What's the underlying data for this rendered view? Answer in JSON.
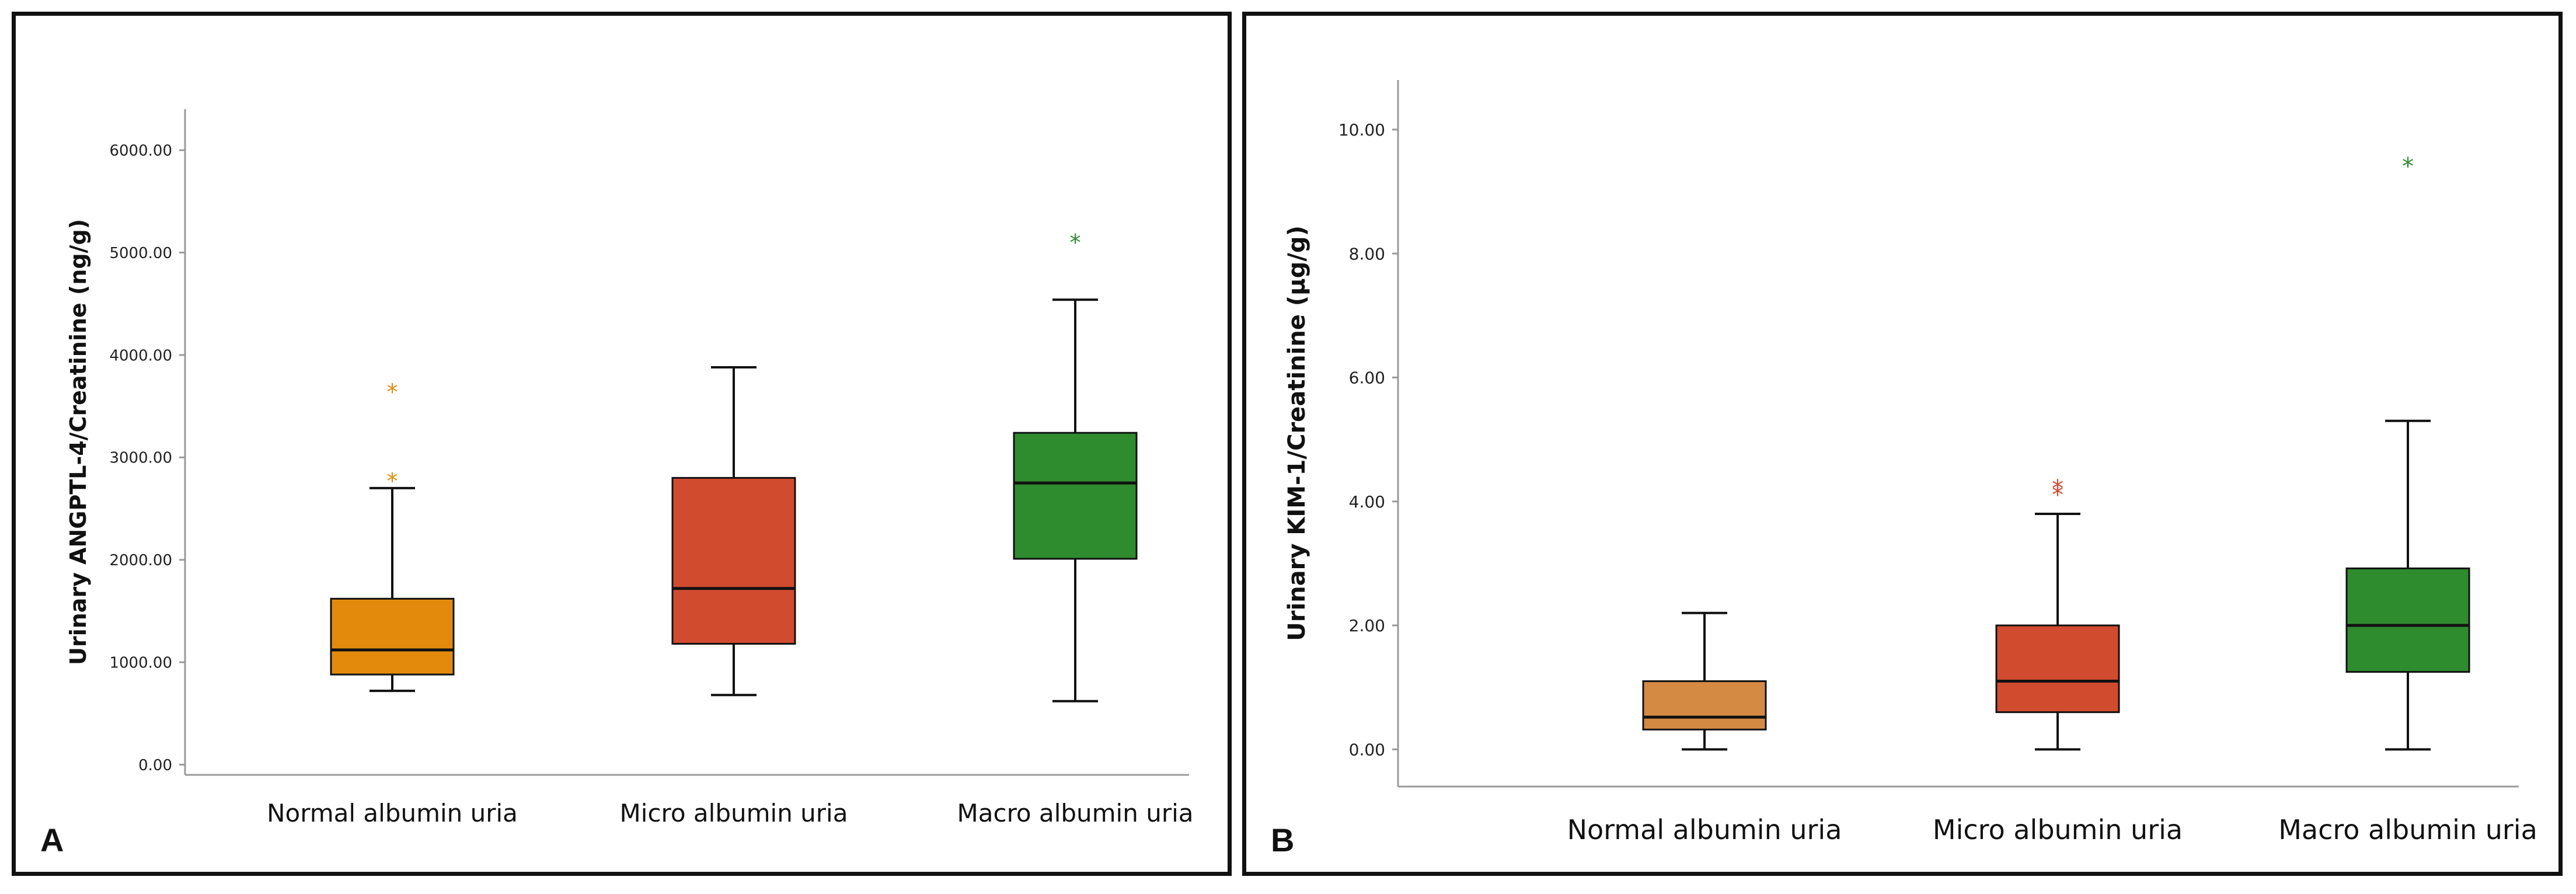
{
  "chart_data": [
    {
      "type": "box",
      "panel_label": "A",
      "ylabel": "Urinary ANGPTL-4/Creatinine (ng/g)",
      "xlabel": "",
      "ylim": [
        -100,
        6400
      ],
      "yticks": [
        0,
        1000,
        2000,
        3000,
        4000,
        5000,
        6000
      ],
      "ytick_labels": [
        "0.00",
        "1000.00",
        "2000.00",
        "3000.00",
        "4000.00",
        "5000.00",
        "6000.00"
      ],
      "categories": [
        "Normal albumin uria",
        "Micro albumin uria",
        "Macro albumin uria"
      ],
      "colors": [
        "#e38a0c",
        "#d14b2f",
        "#2e8b2e"
      ],
      "boxes": [
        {
          "name": "Normal albumin uria",
          "whisker_low": 720,
          "q1": 880,
          "median": 1120,
          "q3": 1620,
          "whisker_high": 2700,
          "outliers": [
            2790,
            3660
          ]
        },
        {
          "name": "Micro albumin uria",
          "whisker_low": 680,
          "q1": 1180,
          "median": 1720,
          "q3": 2800,
          "whisker_high": 3880,
          "outliers": []
        },
        {
          "name": "Macro albumin uria",
          "whisker_low": 620,
          "q1": 2010,
          "median": 2750,
          "q3": 3240,
          "whisker_high": 4540,
          "outliers": [
            5120
          ]
        }
      ]
    },
    {
      "type": "box",
      "panel_label": "B",
      "ylabel": "Urinary KIM-1/Creatinine (μg/g)",
      "xlabel": "",
      "ylim": [
        -0.6,
        10.8
      ],
      "yticks": [
        0,
        2,
        4,
        6,
        8,
        10
      ],
      "ytick_labels": [
        "0.00",
        "2.00",
        "4.00",
        "6.00",
        "8.00",
        "10.00"
      ],
      "categories": [
        "Normal albumin uria",
        "Micro albumin uria",
        "Macro albumin uria"
      ],
      "colors": [
        "#d58a44",
        "#d14b2f",
        "#2e8b2e"
      ],
      "boxes": [
        {
          "name": "Normal albumin uria",
          "whisker_low": 0.0,
          "q1": 0.32,
          "median": 0.52,
          "q3": 1.1,
          "whisker_high": 2.2,
          "outliers": []
        },
        {
          "name": "Micro albumin uria",
          "whisker_low": 0.0,
          "q1": 0.6,
          "median": 1.1,
          "q3": 2.0,
          "whisker_high": 3.8,
          "outliers": [
            4.15,
            4.25
          ]
        },
        {
          "name": "Macro albumin uria",
          "whisker_low": 0.0,
          "q1": 1.25,
          "median": 2.0,
          "q3": 2.92,
          "whisker_high": 5.3,
          "outliers": [
            9.45
          ]
        }
      ]
    }
  ]
}
